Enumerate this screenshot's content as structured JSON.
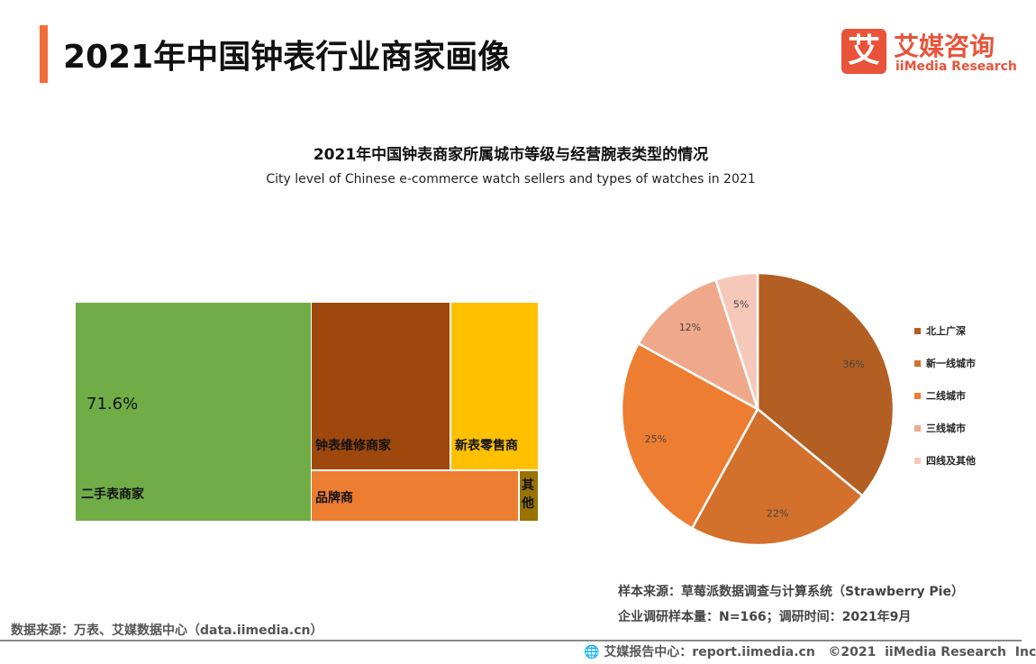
{
  "header": {
    "title": "2021年中国钟表行业商家画像",
    "logo_mark": "艾",
    "logo_cn": "艾媒咨询",
    "logo_en": "iiMedia Research",
    "accent_color": "#f26b3a",
    "brand_color": "#e8533a"
  },
  "chart_data": [
    {
      "type": "treemap",
      "title": "2021年中国钟表商家所属城市等级与经营腕表类型的情况",
      "subtitle": "City level of Chinese e-commerce watch sellers and types of watches in 2021",
      "categories": [
        "二手表商家",
        "钟表维修商家",
        "新表零售商",
        "品牌商",
        "其他"
      ],
      "colors": [
        "#70ad47",
        "#9e480e",
        "#ffc000",
        "#ed7d31",
        "#997300"
      ],
      "data_labels": {
        "二手表商家": "71.6%"
      }
    },
    {
      "type": "pie",
      "categories": [
        "北上广深",
        "新一线城市",
        "二线城市",
        "三线城市",
        "四线及其他"
      ],
      "values": [
        36,
        22,
        25,
        12,
        5
      ],
      "labels": [
        "36%",
        "22%",
        "25%",
        "12%",
        "5%"
      ],
      "colors": [
        "#b35e22",
        "#d2702c",
        "#ed7d31",
        "#f0a88a",
        "#f6c8ba"
      ],
      "legend": "right"
    }
  ],
  "footer": {
    "data_source": "数据来源：万表、艾媒数据中心（data.iimedia.cn）",
    "sample_source": "样本来源：草莓派数据调查与计算系统（Strawberry Pie）",
    "sample_size": "企业调研样本量：N=166；调研时间：2021年9月",
    "report_center": "艾媒报告中心：report.iimedia.cn   ©2021  iiMedia Research  Inc"
  }
}
